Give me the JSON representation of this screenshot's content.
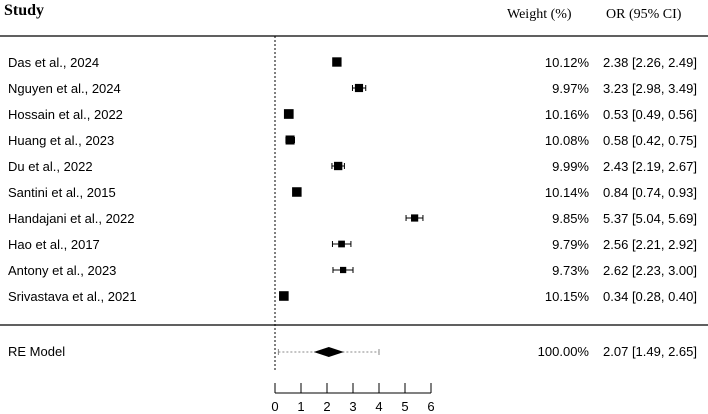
{
  "chart_data": {
    "type": "forest",
    "headers": {
      "study": "Study",
      "weight": "Weight (%)",
      "or": "OR (95% CI)"
    },
    "x_axis": {
      "range": [
        0,
        6
      ],
      "ticks": [
        "0",
        "1",
        "2",
        "3",
        "4",
        "5",
        "6"
      ],
      "reference_line": 1
    },
    "studies": [
      {
        "label": "Das et al., 2024",
        "estimate": 2.38,
        "lower": 2.26,
        "upper": 2.49,
        "weight_label": "10.12%",
        "ci_label": "2.38 [2.26, 2.49]"
      },
      {
        "label": "Nguyen et al., 2024",
        "estimate": 3.23,
        "lower": 2.98,
        "upper": 3.49,
        "weight_label": "9.97%",
        "ci_label": "3.23 [2.98, 3.49]"
      },
      {
        "label": "Hossain et al., 2022",
        "estimate": 0.53,
        "lower": 0.49,
        "upper": 0.56,
        "weight_label": "10.16%",
        "ci_label": "0.53 [0.49, 0.56]"
      },
      {
        "label": "Huang et al., 2023",
        "estimate": 0.58,
        "lower": 0.42,
        "upper": 0.75,
        "weight_label": "10.08%",
        "ci_label": "0.58 [0.42, 0.75]"
      },
      {
        "label": "Du et al., 2022",
        "estimate": 2.43,
        "lower": 2.19,
        "upper": 2.67,
        "weight_label": "9.99%",
        "ci_label": "2.43 [2.19, 2.67]"
      },
      {
        "label": "Santini et al., 2015",
        "estimate": 0.84,
        "lower": 0.74,
        "upper": 0.93,
        "weight_label": "10.14%",
        "ci_label": "0.84 [0.74, 0.93]"
      },
      {
        "label": "Handajani et al., 2022",
        "estimate": 5.37,
        "lower": 5.04,
        "upper": 5.69,
        "weight_label": "9.85%",
        "ci_label": "5.37 [5.04, 5.69]"
      },
      {
        "label": "Hao et al., 2017",
        "estimate": 2.56,
        "lower": 2.21,
        "upper": 2.92,
        "weight_label": "9.79%",
        "ci_label": "2.56 [2.21, 2.92]"
      },
      {
        "label": "Antony et al., 2023",
        "estimate": 2.62,
        "lower": 2.23,
        "upper": 3.0,
        "weight_label": "9.73%",
        "ci_label": "2.62 [2.23, 3.00]"
      },
      {
        "label": "Srivastava et al., 2021",
        "estimate": 0.34,
        "lower": 0.28,
        "upper": 0.4,
        "weight_label": "10.15%",
        "ci_label": "0.34 [0.28, 0.40]"
      }
    ],
    "summary": {
      "label": "RE Model",
      "estimate": 2.07,
      "lower": 1.49,
      "upper": 2.65,
      "pred_lower": 0.13,
      "pred_upper": 4.0,
      "weight_label": "100.00%",
      "ci_label": "2.07 [1.49, 2.65]"
    },
    "colors": {
      "marker": "#000000",
      "text": "#000000",
      "prediction_interval": "#888888"
    }
  }
}
